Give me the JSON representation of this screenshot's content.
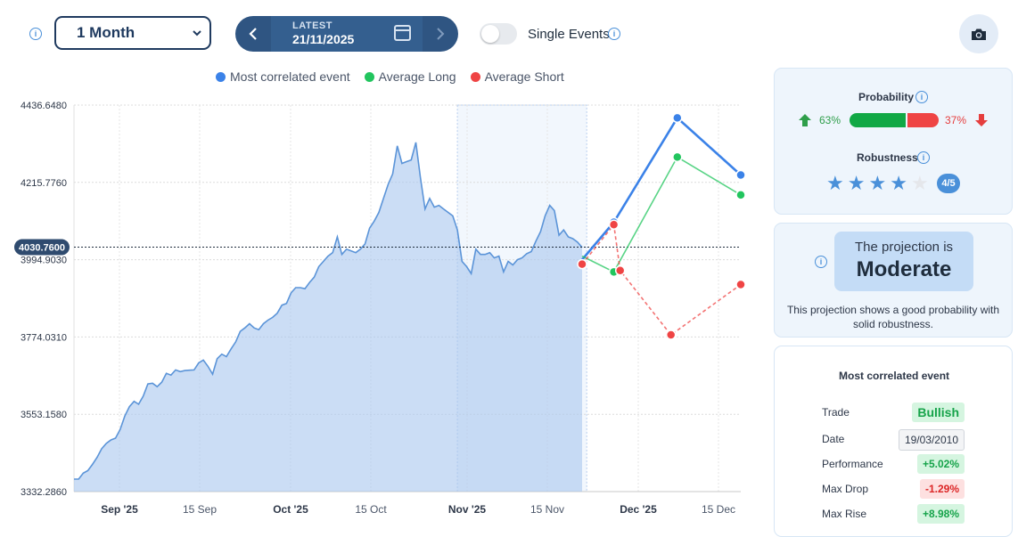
{
  "header": {
    "range_select": "1 Month",
    "latest_label": "LATEST",
    "latest_date": "21/11/2025",
    "single_events_label": "Single Events"
  },
  "legend": [
    {
      "name": "Most correlated event",
      "color": "#3b82e8"
    },
    {
      "name": "Average Long",
      "color": "#22c55e"
    },
    {
      "name": "Average Short",
      "color": "#ef4444"
    }
  ],
  "chart_data": {
    "type": "line",
    "y_ticks": [
      "4436.6480",
      "4215.7760",
      "3994.9030",
      "3774.0310",
      "3553.1580",
      "3332.2860"
    ],
    "ylim": [
      3332.286,
      4436.648
    ],
    "current_value_label": "4030.7600",
    "current_value": 4030.76,
    "x_ticks": [
      {
        "label": "Sep '25",
        "bold": true
      },
      {
        "label": "15 Sep",
        "bold": false
      },
      {
        "label": "Oct '25",
        "bold": true
      },
      {
        "label": "15 Oct",
        "bold": false
      },
      {
        "label": "Nov '25",
        "bold": true
      },
      {
        "label": "15 Nov",
        "bold": false
      },
      {
        "label": "Dec '25",
        "bold": true
      },
      {
        "label": "15 Dec",
        "bold": false
      }
    ],
    "history": [
      3368,
      3368,
      3385,
      3392,
      3410,
      3430,
      3455,
      3470,
      3480,
      3485,
      3510,
      3548,
      3575,
      3590,
      3582,
      3605,
      3640,
      3642,
      3632,
      3645,
      3670,
      3665,
      3680,
      3675,
      3678,
      3679,
      3680,
      3700,
      3708,
      3690,
      3668,
      3712,
      3725,
      3718,
      3740,
      3760,
      3790,
      3800,
      3812,
      3800,
      3795,
      3812,
      3822,
      3830,
      3842,
      3865,
      3870,
      3900,
      3915,
      3915,
      3912,
      3930,
      3945,
      3975,
      3990,
      4005,
      4015,
      4060,
      4010,
      4025,
      4020,
      4015,
      4025,
      4040,
      4085,
      4105,
      4130,
      4170,
      4210,
      4240,
      4320,
      4270,
      4275,
      4280,
      4330,
      4230,
      4140,
      4170,
      4145,
      4150,
      4140,
      4130,
      4120,
      4080,
      3990,
      3975,
      3955,
      4025,
      4010,
      4010,
      4015,
      4000,
      4005,
      3960,
      3990,
      3980,
      3995,
      4000,
      4012,
      4018,
      4048,
      4075,
      4120,
      4150,
      4135,
      4065,
      4080,
      4060,
      4055,
      4045,
      4030
    ],
    "future_dates": [
      "21/11/2025",
      "30/11/2025",
      "10/12/2025",
      "19/12/2025"
    ],
    "series": [
      {
        "name": "Most correlated event",
        "color": "#3b82e8",
        "dashed": false,
        "points": [
          [
            0,
            3994.9
          ],
          [
            1,
            4102
          ],
          [
            3,
            4400
          ],
          [
            5,
            4237
          ]
        ]
      },
      {
        "name": "Average Long",
        "color": "#22c55e",
        "dashed": false,
        "points": [
          [
            0,
            4005
          ],
          [
            1,
            3960
          ],
          [
            3,
            4288
          ],
          [
            5,
            4180
          ]
        ]
      },
      {
        "name": "Average Short",
        "color": "#ef4444",
        "dashed": true,
        "points": [
          [
            0,
            3982
          ],
          [
            1,
            4095
          ],
          [
            1.2,
            3964
          ],
          [
            2.8,
            3780
          ],
          [
            5,
            3924
          ]
        ]
      }
    ],
    "highlight_band": {
      "from_index": 83,
      "to_index": 111
    },
    "grid": true
  },
  "probability": {
    "title": "Probability",
    "up_pct": "63%",
    "up_value": 63,
    "down_pct": "37%",
    "up_color": "#11a845",
    "down_color": "#ef4444"
  },
  "robustness": {
    "title": "Robustness",
    "score": "4/5",
    "stars_filled": 4,
    "stars_total": 5
  },
  "projection": {
    "pre": "The projection is",
    "value": "Moderate",
    "description": "This projection shows a good probability with solid robustness."
  },
  "event": {
    "title": "Most correlated event",
    "rows": [
      {
        "label": "Trade",
        "value": "Bullish",
        "tone": "green"
      },
      {
        "label": "Date",
        "value": "19/03/2010",
        "tone": "neutral"
      },
      {
        "label": "Performance",
        "value": "+5.02%",
        "tone": "green"
      },
      {
        "label": "Max Drop",
        "value": "-1.29%",
        "tone": "red"
      },
      {
        "label": "Max Rise",
        "value": "+8.98%",
        "tone": "green"
      }
    ]
  }
}
